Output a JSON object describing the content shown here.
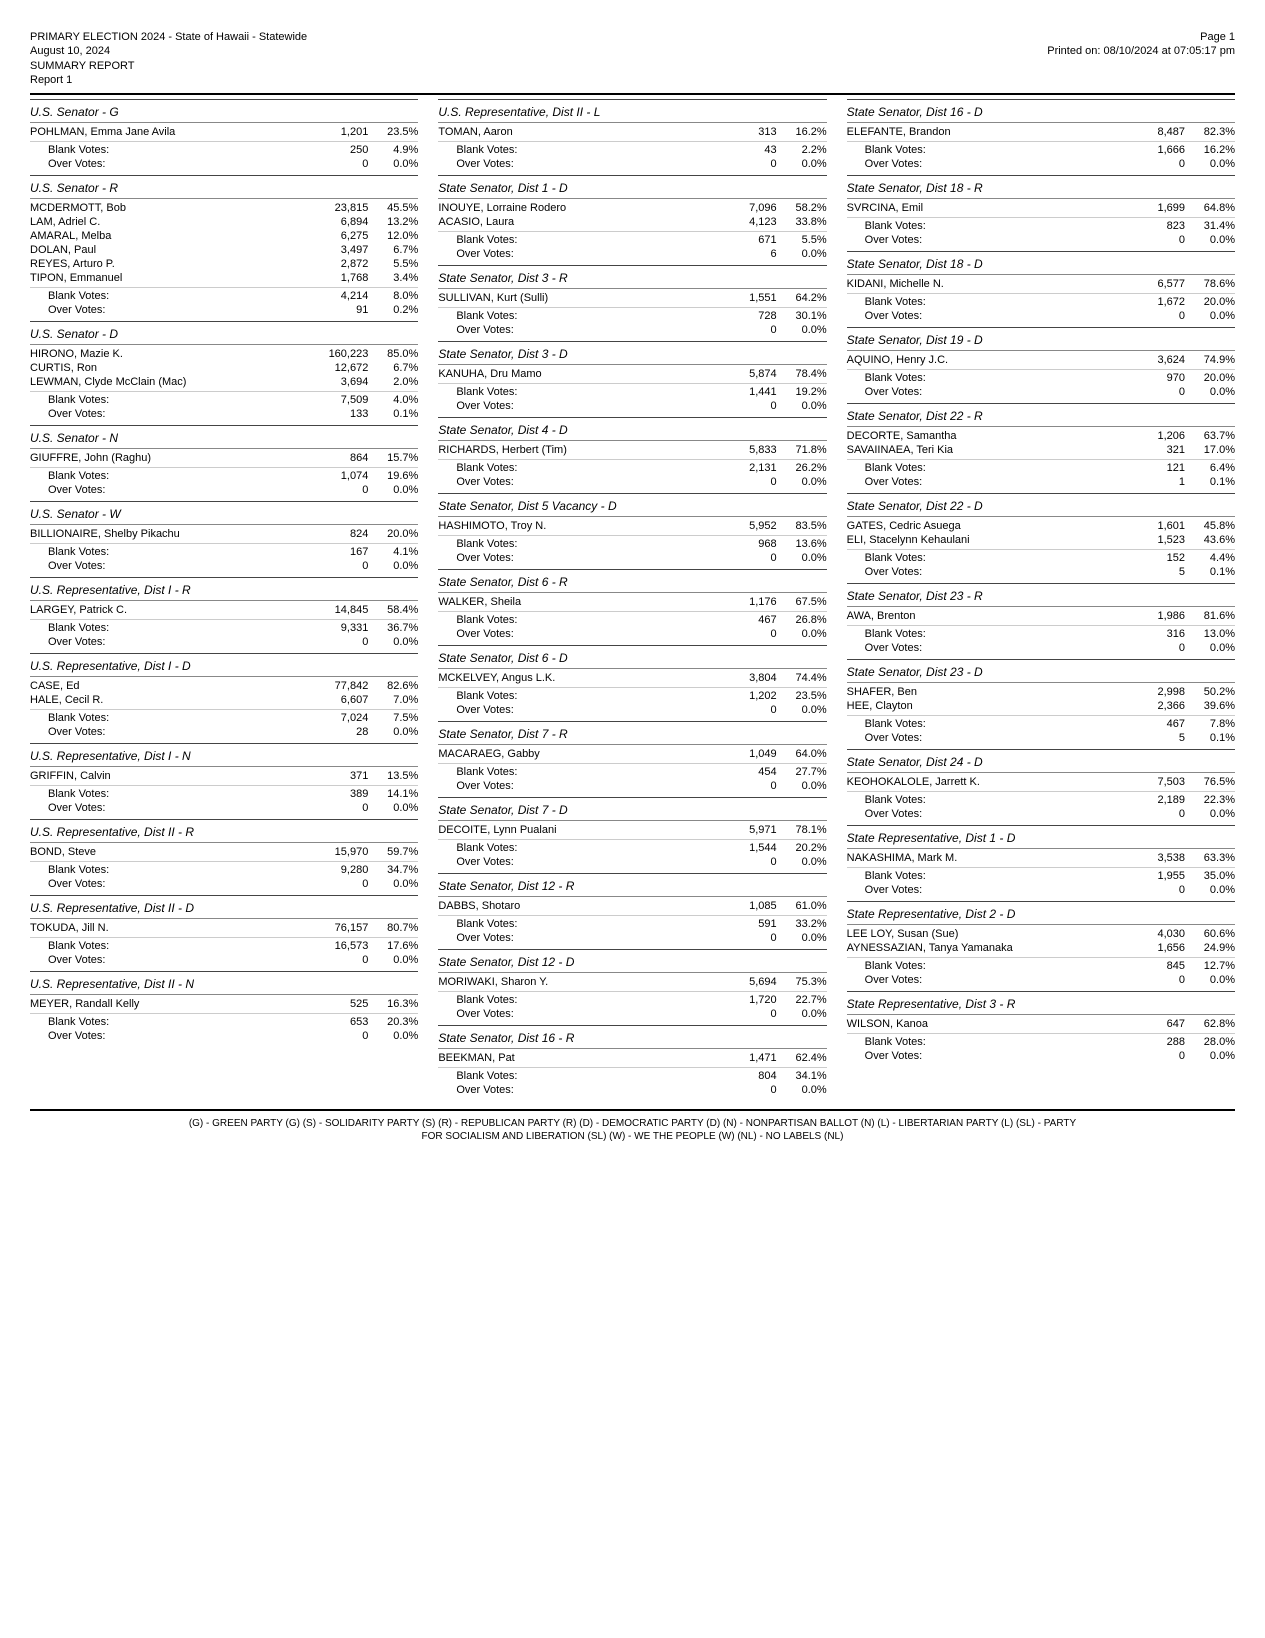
{
  "header": {
    "line1": "PRIMARY ELECTION 2024 - State of Hawaii - Statewide",
    "line2": "August 10, 2024",
    "line3": "SUMMARY REPORT",
    "line4": "Report 1",
    "page": "Page 1",
    "printed": "Printed on: 08/10/2024 at 07:05:17 pm"
  },
  "footer": {
    "line1": "(G) - GREEN PARTY (G)   (S) - SOLIDARITY PARTY (S)   (R) - REPUBLICAN PARTY (R)   (D) - DEMOCRATIC PARTY (D)   (N) - NONPARTISAN BALLOT (N)   (L) - LIBERTARIAN PARTY (L)   (SL) - PARTY",
    "line2": "FOR SOCIALISM AND LIBERATION (SL)   (W) - WE THE PEOPLE (W)   (NL) - NO LABELS (NL)"
  },
  "columns": [
    [
      {
        "title": "U.S. Senator - G",
        "rows": [
          [
            "POHLMAN, Emma Jane Avila",
            "1,201",
            "23.5%"
          ]
        ],
        "sub": [
          [
            "Blank Votes:",
            "250",
            "4.9%"
          ],
          [
            "Over Votes:",
            "0",
            "0.0%"
          ]
        ]
      },
      {
        "title": "U.S. Senator - R",
        "rows": [
          [
            "MCDERMOTT, Bob",
            "23,815",
            "45.5%"
          ],
          [
            "LAM, Adriel C.",
            "6,894",
            "13.2%"
          ],
          [
            "AMARAL, Melba",
            "6,275",
            "12.0%"
          ],
          [
            "DOLAN, Paul",
            "3,497",
            "6.7%"
          ],
          [
            "REYES, Arturo P.",
            "2,872",
            "5.5%"
          ],
          [
            "TIPON, Emmanuel",
            "1,768",
            "3.4%"
          ]
        ],
        "sub": [
          [
            "Blank Votes:",
            "4,214",
            "8.0%"
          ],
          [
            "Over Votes:",
            "91",
            "0.2%"
          ]
        ]
      },
      {
        "title": "U.S. Senator - D",
        "rows": [
          [
            "HIRONO, Mazie K.",
            "160,223",
            "85.0%"
          ],
          [
            "CURTIS, Ron",
            "12,672",
            "6.7%"
          ],
          [
            "LEWMAN, Clyde McClain (Mac)",
            "3,694",
            "2.0%"
          ]
        ],
        "sub": [
          [
            "Blank Votes:",
            "7,509",
            "4.0%"
          ],
          [
            "Over Votes:",
            "133",
            "0.1%"
          ]
        ]
      },
      {
        "title": "U.S. Senator - N",
        "rows": [
          [
            "GIUFFRE, John (Raghu)",
            "864",
            "15.7%"
          ]
        ],
        "sub": [
          [
            "Blank Votes:",
            "1,074",
            "19.6%"
          ],
          [
            "Over Votes:",
            "0",
            "0.0%"
          ]
        ]
      },
      {
        "title": "U.S. Senator - W",
        "rows": [
          [
            "BILLIONAIRE, Shelby Pikachu",
            "824",
            "20.0%"
          ]
        ],
        "sub": [
          [
            "Blank Votes:",
            "167",
            "4.1%"
          ],
          [
            "Over Votes:",
            "0",
            "0.0%"
          ]
        ]
      },
      {
        "title": "U.S. Representative, Dist I - R",
        "rows": [
          [
            "LARGEY, Patrick C.",
            "14,845",
            "58.4%"
          ]
        ],
        "sub": [
          [
            "Blank Votes:",
            "9,331",
            "36.7%"
          ],
          [
            "Over Votes:",
            "0",
            "0.0%"
          ]
        ]
      },
      {
        "title": "U.S. Representative, Dist I - D",
        "rows": [
          [
            "CASE, Ed",
            "77,842",
            "82.6%"
          ],
          [
            "HALE, Cecil R.",
            "6,607",
            "7.0%"
          ]
        ],
        "sub": [
          [
            "Blank Votes:",
            "7,024",
            "7.5%"
          ],
          [
            "Over Votes:",
            "28",
            "0.0%"
          ]
        ]
      },
      {
        "title": "U.S. Representative, Dist I - N",
        "rows": [
          [
            "GRIFFIN, Calvin",
            "371",
            "13.5%"
          ]
        ],
        "sub": [
          [
            "Blank Votes:",
            "389",
            "14.1%"
          ],
          [
            "Over Votes:",
            "0",
            "0.0%"
          ]
        ]
      },
      {
        "title": "U.S. Representative, Dist II - R",
        "rows": [
          [
            "BOND, Steve",
            "15,970",
            "59.7%"
          ]
        ],
        "sub": [
          [
            "Blank Votes:",
            "9,280",
            "34.7%"
          ],
          [
            "Over Votes:",
            "0",
            "0.0%"
          ]
        ]
      },
      {
        "title": "U.S. Representative, Dist II - D",
        "rows": [
          [
            "TOKUDA, Jill N.",
            "76,157",
            "80.7%"
          ]
        ],
        "sub": [
          [
            "Blank Votes:",
            "16,573",
            "17.6%"
          ],
          [
            "Over Votes:",
            "0",
            "0.0%"
          ]
        ]
      },
      {
        "title": "U.S. Representative, Dist II - N",
        "rows": [
          [
            "MEYER, Randall Kelly",
            "525",
            "16.3%"
          ]
        ],
        "sub": [
          [
            "Blank Votes:",
            "653",
            "20.3%"
          ],
          [
            "Over Votes:",
            "0",
            "0.0%"
          ]
        ]
      }
    ],
    [
      {
        "title": "U.S. Representative, Dist II - L",
        "rows": [
          [
            "TOMAN, Aaron",
            "313",
            "16.2%"
          ]
        ],
        "sub": [
          [
            "Blank Votes:",
            "43",
            "2.2%"
          ],
          [
            "Over Votes:",
            "0",
            "0.0%"
          ]
        ]
      },
      {
        "title": "State Senator, Dist 1 - D",
        "rows": [
          [
            "INOUYE, Lorraine Rodero",
            "7,096",
            "58.2%"
          ],
          [
            "ACASIO, Laura",
            "4,123",
            "33.8%"
          ]
        ],
        "sub": [
          [
            "Blank Votes:",
            "671",
            "5.5%"
          ],
          [
            "Over Votes:",
            "6",
            "0.0%"
          ]
        ]
      },
      {
        "title": "State Senator, Dist 3 - R",
        "rows": [
          [
            "SULLIVAN, Kurt (Sulli)",
            "1,551",
            "64.2%"
          ]
        ],
        "sub": [
          [
            "Blank Votes:",
            "728",
            "30.1%"
          ],
          [
            "Over Votes:",
            "0",
            "0.0%"
          ]
        ]
      },
      {
        "title": "State Senator, Dist 3 - D",
        "rows": [
          [
            "KANUHA, Dru Mamo",
            "5,874",
            "78.4%"
          ]
        ],
        "sub": [
          [
            "Blank Votes:",
            "1,441",
            "19.2%"
          ],
          [
            "Over Votes:",
            "0",
            "0.0%"
          ]
        ]
      },
      {
        "title": "State Senator, Dist 4 - D",
        "rows": [
          [
            "RICHARDS, Herbert (Tim)",
            "5,833",
            "71.8%"
          ]
        ],
        "sub": [
          [
            "Blank Votes:",
            "2,131",
            "26.2%"
          ],
          [
            "Over Votes:",
            "0",
            "0.0%"
          ]
        ]
      },
      {
        "title": "State Senator, Dist 5 Vacancy - D",
        "rows": [
          [
            "HASHIMOTO, Troy N.",
            "5,952",
            "83.5%"
          ]
        ],
        "sub": [
          [
            "Blank Votes:",
            "968",
            "13.6%"
          ],
          [
            "Over Votes:",
            "0",
            "0.0%"
          ]
        ]
      },
      {
        "title": "State Senator, Dist 6 - R",
        "rows": [
          [
            "WALKER, Sheila",
            "1,176",
            "67.5%"
          ]
        ],
        "sub": [
          [
            "Blank Votes:",
            "467",
            "26.8%"
          ],
          [
            "Over Votes:",
            "0",
            "0.0%"
          ]
        ]
      },
      {
        "title": "State Senator, Dist 6 - D",
        "rows": [
          [
            "MCKELVEY, Angus L.K.",
            "3,804",
            "74.4%"
          ]
        ],
        "sub": [
          [
            "Blank Votes:",
            "1,202",
            "23.5%"
          ],
          [
            "Over Votes:",
            "0",
            "0.0%"
          ]
        ]
      },
      {
        "title": "State Senator, Dist 7 - R",
        "rows": [
          [
            "MACARAEG, Gabby",
            "1,049",
            "64.0%"
          ]
        ],
        "sub": [
          [
            "Blank Votes:",
            "454",
            "27.7%"
          ],
          [
            "Over Votes:",
            "0",
            "0.0%"
          ]
        ]
      },
      {
        "title": "State Senator, Dist 7 - D",
        "rows": [
          [
            "DECOITE, Lynn Pualani",
            "5,971",
            "78.1%"
          ]
        ],
        "sub": [
          [
            "Blank Votes:",
            "1,544",
            "20.2%"
          ],
          [
            "Over Votes:",
            "0",
            "0.0%"
          ]
        ]
      },
      {
        "title": "State Senator, Dist 12 - R",
        "rows": [
          [
            "DABBS, Shotaro",
            "1,085",
            "61.0%"
          ]
        ],
        "sub": [
          [
            "Blank Votes:",
            "591",
            "33.2%"
          ],
          [
            "Over Votes:",
            "0",
            "0.0%"
          ]
        ]
      },
      {
        "title": "State Senator, Dist 12 - D",
        "rows": [
          [
            "MORIWAKI, Sharon Y.",
            "5,694",
            "75.3%"
          ]
        ],
        "sub": [
          [
            "Blank Votes:",
            "1,720",
            "22.7%"
          ],
          [
            "Over Votes:",
            "0",
            "0.0%"
          ]
        ]
      },
      {
        "title": "State Senator, Dist 16 - R",
        "rows": [
          [
            "BEEKMAN, Pat",
            "1,471",
            "62.4%"
          ]
        ],
        "sub": [
          [
            "Blank Votes:",
            "804",
            "34.1%"
          ],
          [
            "Over Votes:",
            "0",
            "0.0%"
          ]
        ]
      }
    ],
    [
      {
        "title": "State Senator, Dist 16 - D",
        "rows": [
          [
            "ELEFANTE, Brandon",
            "8,487",
            "82.3%"
          ]
        ],
        "sub": [
          [
            "Blank Votes:",
            "1,666",
            "16.2%"
          ],
          [
            "Over Votes:",
            "0",
            "0.0%"
          ]
        ]
      },
      {
        "title": "State Senator, Dist 18 - R",
        "rows": [
          [
            "SVRCINA, Emil",
            "1,699",
            "64.8%"
          ]
        ],
        "sub": [
          [
            "Blank Votes:",
            "823",
            "31.4%"
          ],
          [
            "Over Votes:",
            "0",
            "0.0%"
          ]
        ]
      },
      {
        "title": "State Senator, Dist 18 - D",
        "rows": [
          [
            "KIDANI, Michelle N.",
            "6,577",
            "78.6%"
          ]
        ],
        "sub": [
          [
            "Blank Votes:",
            "1,672",
            "20.0%"
          ],
          [
            "Over Votes:",
            "0",
            "0.0%"
          ]
        ]
      },
      {
        "title": "State Senator, Dist 19 - D",
        "rows": [
          [
            "AQUINO, Henry J.C.",
            "3,624",
            "74.9%"
          ]
        ],
        "sub": [
          [
            "Blank Votes:",
            "970",
            "20.0%"
          ],
          [
            "Over Votes:",
            "0",
            "0.0%"
          ]
        ]
      },
      {
        "title": "State Senator, Dist 22 - R",
        "rows": [
          [
            "DECORTE, Samantha",
            "1,206",
            "63.7%"
          ],
          [
            "SAVAIINAEA, Teri Kia",
            "321",
            "17.0%"
          ]
        ],
        "sub": [
          [
            "Blank Votes:",
            "121",
            "6.4%"
          ],
          [
            "Over Votes:",
            "1",
            "0.1%"
          ]
        ]
      },
      {
        "title": "State Senator, Dist 22 - D",
        "rows": [
          [
            "GATES, Cedric Asuega",
            "1,601",
            "45.8%"
          ],
          [
            "ELI, Stacelynn Kehaulani",
            "1,523",
            "43.6%"
          ]
        ],
        "sub": [
          [
            "Blank Votes:",
            "152",
            "4.4%"
          ],
          [
            "Over Votes:",
            "5",
            "0.1%"
          ]
        ]
      },
      {
        "title": "State Senator, Dist 23 - R",
        "rows": [
          [
            "AWA, Brenton",
            "1,986",
            "81.6%"
          ]
        ],
        "sub": [
          [
            "Blank Votes:",
            "316",
            "13.0%"
          ],
          [
            "Over Votes:",
            "0",
            "0.0%"
          ]
        ]
      },
      {
        "title": "State Senator, Dist 23 - D",
        "rows": [
          [
            "SHAFER, Ben",
            "2,998",
            "50.2%"
          ],
          [
            "HEE, Clayton",
            "2,366",
            "39.6%"
          ]
        ],
        "sub": [
          [
            "Blank Votes:",
            "467",
            "7.8%"
          ],
          [
            "Over Votes:",
            "5",
            "0.1%"
          ]
        ]
      },
      {
        "title": "State Senator, Dist 24 - D",
        "rows": [
          [
            "KEOHOKALOLE, Jarrett K.",
            "7,503",
            "76.5%"
          ]
        ],
        "sub": [
          [
            "Blank Votes:",
            "2,189",
            "22.3%"
          ],
          [
            "Over Votes:",
            "0",
            "0.0%"
          ]
        ]
      },
      {
        "title": "State Representative, Dist 1 - D",
        "rows": [
          [
            "NAKASHIMA, Mark M.",
            "3,538",
            "63.3%"
          ]
        ],
        "sub": [
          [
            "Blank Votes:",
            "1,955",
            "35.0%"
          ],
          [
            "Over Votes:",
            "0",
            "0.0%"
          ]
        ]
      },
      {
        "title": "State Representative, Dist 2 - D",
        "rows": [
          [
            "LEE LOY, Susan (Sue)",
            "4,030",
            "60.6%"
          ],
          [
            "AYNESSAZIAN, Tanya Yamanaka",
            "1,656",
            "24.9%"
          ]
        ],
        "sub": [
          [
            "Blank Votes:",
            "845",
            "12.7%"
          ],
          [
            "Over Votes:",
            "0",
            "0.0%"
          ]
        ]
      },
      {
        "title": "State Representative, Dist 3 - R",
        "rows": [
          [
            "WILSON, Kanoa",
            "647",
            "62.8%"
          ]
        ],
        "sub": [
          [
            "Blank Votes:",
            "288",
            "28.0%"
          ],
          [
            "Over Votes:",
            "0",
            "0.0%"
          ]
        ]
      }
    ]
  ]
}
